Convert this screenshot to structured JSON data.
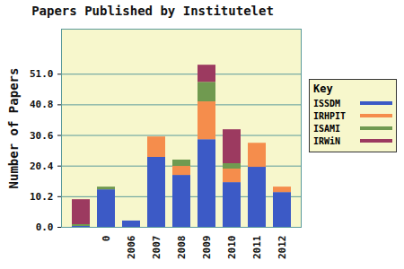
{
  "chart_data": {
    "type": "bar",
    "stacked": true,
    "title": "Papers Published by Institutelet",
    "y_label": "Number of Papers",
    "legend_title": "Key",
    "legend": "right",
    "grid": true,
    "categories": [
      null,
      "0",
      "2006",
      "2007",
      "2008",
      "2009",
      "2010",
      "2011",
      "2012"
    ],
    "series": [
      {
        "name": "ISSDM",
        "color": "#3c5ac6",
        "values": [
          0.3,
          12.5,
          2.1,
          23.3,
          17.3,
          29.2,
          14.9,
          20.0,
          11.6
        ]
      },
      {
        "name": "IRHPIT",
        "color": "#f58d4c",
        "values": [
          0,
          0,
          0,
          6.8,
          3.0,
          12.6,
          4.5,
          8.0,
          1.8
        ]
      },
      {
        "name": "ISAMI",
        "color": "#709a50",
        "values": [
          0.6,
          0.9,
          0,
          0,
          2.1,
          6.5,
          1.8,
          0,
          0
        ]
      },
      {
        "name": "IRWiN",
        "color": "#9c3a60",
        "values": [
          8.3,
          0,
          0,
          0,
          0,
          5.7,
          11.3,
          0,
          0
        ]
      }
    ],
    "ylim": [
      0,
      66
    ],
    "yticks": [
      {
        "value": 0,
        "label": "0.0"
      },
      {
        "value": 10.2,
        "label": "10.2"
      },
      {
        "value": 20.4,
        "label": "20.4"
      },
      {
        "value": 30.6,
        "label": "30.6"
      },
      {
        "value": 40.8,
        "label": "40.8"
      },
      {
        "value": 51,
        "label": "51.0"
      }
    ]
  }
}
